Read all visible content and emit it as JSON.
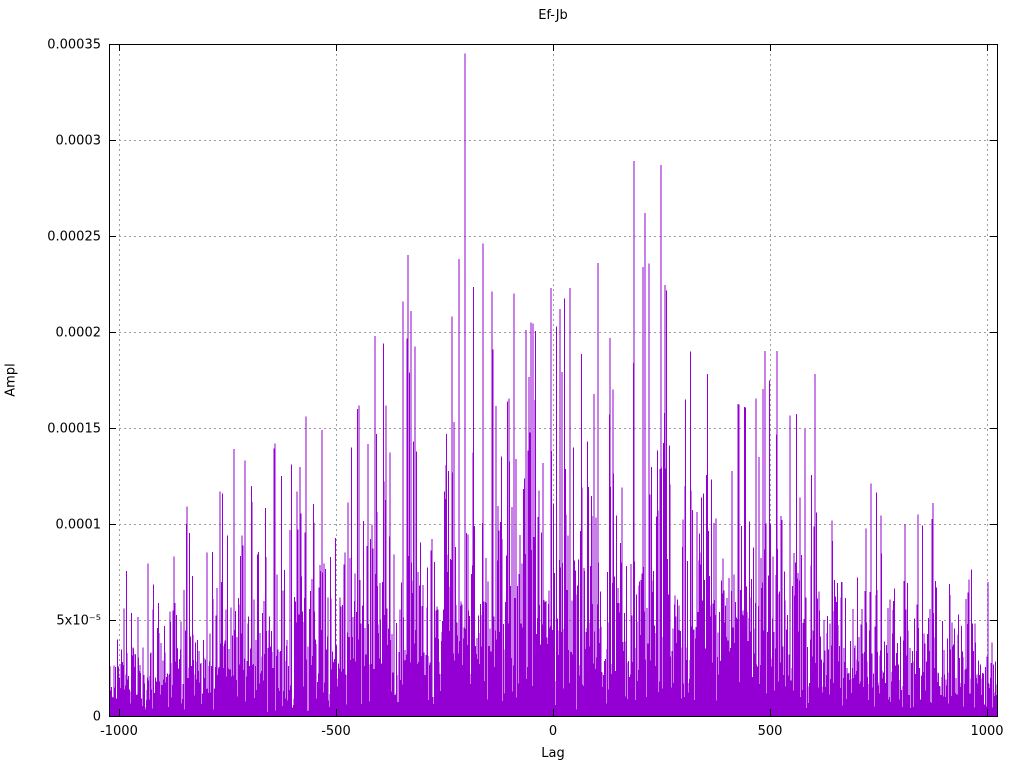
{
  "chart_data": {
    "type": "bar",
    "style": "impulses",
    "title": "Ef-Jb",
    "xlabel": "Lag",
    "ylabel": "Ampl",
    "xlim": [
      -1023,
      1023
    ],
    "ylim": [
      0,
      0.00035
    ],
    "x_ticks": [
      -1000,
      -500,
      0,
      500,
      1000
    ],
    "x_tick_labels": [
      "-1000",
      "-500",
      "0",
      "500",
      "1000"
    ],
    "y_ticks": [
      0,
      5e-05,
      0.0001,
      0.00015,
      0.0002,
      0.00025,
      0.0003,
      0.00035
    ],
    "y_tick_labels": [
      "0",
      "5x10⁻⁵",
      "0.0001",
      "0.00015",
      "0.0002",
      "0.00025",
      "0.0003",
      "0.00035"
    ],
    "grid": true,
    "legend": "none",
    "line_color": "#9400d3",
    "grid_color": "#9e9e9e",
    "border_color": "#000000",
    "background": "#ffffff",
    "noise_profile": "dense impulse noise from 0 up to the local envelope, solid mass in lowest ~35% of envelope, sparse spikes above",
    "envelope_points": [
      [
        -1023,
        7e-05
      ],
      [
        -950,
        8e-05
      ],
      [
        -900,
        9.5e-05
      ],
      [
        -850,
        0.00011
      ],
      [
        -800,
        0.000125
      ],
      [
        -750,
        0.000135
      ],
      [
        -700,
        0.00013
      ],
      [
        -650,
        0.00014
      ],
      [
        -600,
        0.000135
      ],
      [
        -550,
        0.00015
      ],
      [
        -500,
        0.000145
      ],
      [
        -450,
        0.00016
      ],
      [
        -400,
        0.00019
      ],
      [
        -350,
        0.00021
      ],
      [
        -300,
        0.000195
      ],
      [
        -250,
        0.000205
      ],
      [
        -200,
        0.00023
      ],
      [
        -150,
        0.000225
      ],
      [
        -100,
        0.000215
      ],
      [
        -50,
        0.00021
      ],
      [
        0,
        0.00022
      ],
      [
        50,
        0.000215
      ],
      [
        100,
        0.00023
      ],
      [
        150,
        0.00021
      ],
      [
        200,
        0.00024
      ],
      [
        250,
        0.00023
      ],
      [
        300,
        0.000195
      ],
      [
        350,
        0.00018
      ],
      [
        400,
        0.000165
      ],
      [
        450,
        0.00016
      ],
      [
        500,
        0.000175
      ],
      [
        550,
        0.000155
      ],
      [
        600,
        0.000165
      ],
      [
        650,
        0.00014
      ],
      [
        700,
        0.00013
      ],
      [
        750,
        0.000115
      ],
      [
        800,
        0.000105
      ],
      [
        850,
        0.000105
      ],
      [
        900,
        0.0001
      ],
      [
        950,
        8.5e-05
      ],
      [
        1023,
        7e-05
      ]
    ],
    "notable_peaks": [
      {
        "lag": -843,
        "ampl": 0.000109
      },
      {
        "lag": -767,
        "ampl": 0.000117
      },
      {
        "lag": -735,
        "ampl": 0.000139
      },
      {
        "lag": -710,
        "ampl": 0.000133
      },
      {
        "lag": -641,
        "ampl": 0.000142
      },
      {
        "lag": -569,
        "ampl": 0.000156
      },
      {
        "lag": -532,
        "ampl": 0.000149
      },
      {
        "lag": -410,
        "ampl": 0.000198
      },
      {
        "lag": -346,
        "ampl": 0.000216
      },
      {
        "lag": -334,
        "ampl": 0.00024
      },
      {
        "lag": -327,
        "ampl": 0.000211
      },
      {
        "lag": -233,
        "ampl": 0.000208
      },
      {
        "lag": -217,
        "ampl": 0.000238
      },
      {
        "lag": -203,
        "ampl": 0.000345
      },
      {
        "lag": -161,
        "ampl": 0.000246
      },
      {
        "lag": -140,
        "ampl": 0.000221
      },
      {
        "lag": -90,
        "ampl": 0.00022
      },
      {
        "lag": -51,
        "ampl": 0.000205
      },
      {
        "lag": -5,
        "ampl": 0.000223
      },
      {
        "lag": 16,
        "ampl": 0.000212
      },
      {
        "lag": 39,
        "ampl": 0.000223
      },
      {
        "lag": 104,
        "ampl": 0.000236
      },
      {
        "lag": 131,
        "ampl": 0.000197
      },
      {
        "lag": 187,
        "ampl": 0.000289
      },
      {
        "lag": 212,
        "ampl": 0.000262
      },
      {
        "lag": 249,
        "ampl": 0.000287
      },
      {
        "lag": 489,
        "ampl": 0.00019
      },
      {
        "lag": 516,
        "ampl": 0.00019
      },
      {
        "lag": 604,
        "ampl": 0.000178
      },
      {
        "lag": 733,
        "ampl": 0.000121
      },
      {
        "lag": 811,
        "ampl": 0.0001
      },
      {
        "lag": 876,
        "ampl": 0.000111
      }
    ]
  }
}
